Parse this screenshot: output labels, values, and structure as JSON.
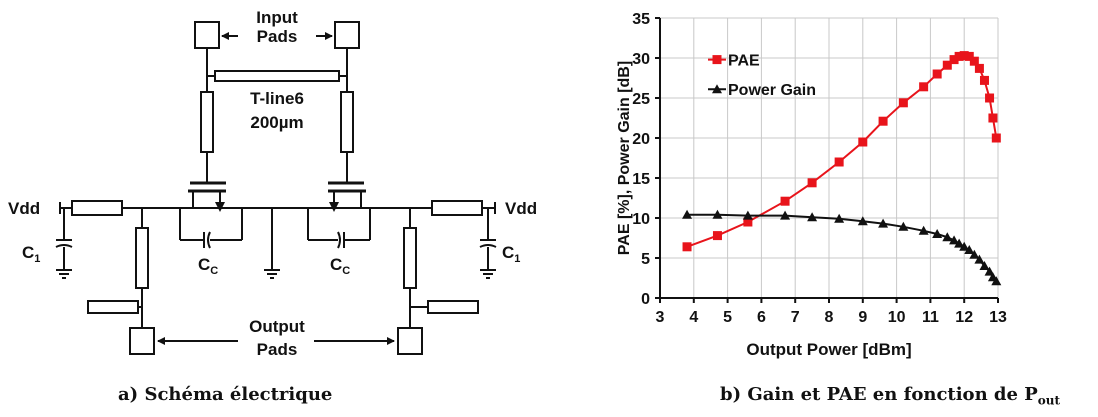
{
  "schematic": {
    "input_pads_line1": "Input",
    "input_pads_line2": "Pads",
    "tline_label1": "T-line6",
    "tline_label2": "200µm",
    "vdd_left": "Vdd",
    "vdd_right": "Vdd",
    "c1_left": "C",
    "c1_left_sub": "1",
    "c1_right": "C",
    "c1_right_sub": "1",
    "cc_left": "C",
    "cc_left_sub": "C",
    "cc_right": "C",
    "cc_right_sub": "C",
    "output_pads_line1": "Output",
    "output_pads_line2": "Pads"
  },
  "captions": {
    "left": "a) Schéma électrique",
    "right_main": "b) Gain et PAE en fonction de P",
    "right_sub": "out"
  },
  "chart_data": {
    "type": "line",
    "xlabel": "Output Power [dBm]",
    "ylabel": "PAE  [%],  Power  Gain  [dB]",
    "xlim": [
      3,
      13
    ],
    "ylim": [
      0,
      35
    ],
    "xticks": [
      3,
      4,
      5,
      6,
      7,
      8,
      9,
      10,
      11,
      12,
      13
    ],
    "yticks": [
      0,
      5,
      10,
      15,
      20,
      25,
      30,
      35
    ],
    "grid": true,
    "legend_position": "top-left",
    "series": [
      {
        "name": "PAE",
        "color": "#e8141b",
        "marker": "square",
        "x": [
          3.8,
          4.7,
          5.6,
          6.7,
          7.5,
          8.3,
          9.0,
          9.6,
          10.2,
          10.8,
          11.2,
          11.5,
          11.7,
          11.85,
          12.0,
          12.15,
          12.3,
          12.45,
          12.6,
          12.75,
          12.85,
          12.95
        ],
        "y": [
          6.4,
          7.8,
          9.5,
          12.1,
          14.4,
          17.0,
          19.5,
          22.1,
          24.4,
          26.4,
          28.0,
          29.1,
          29.8,
          30.2,
          30.3,
          30.2,
          29.6,
          28.7,
          27.2,
          25.0,
          22.5,
          20.0
        ]
      },
      {
        "name": "Power Gain",
        "color": "#111111",
        "marker": "triangle",
        "x": [
          3.8,
          4.7,
          5.6,
          6.7,
          7.5,
          8.3,
          9.0,
          9.6,
          10.2,
          10.8,
          11.2,
          11.5,
          11.7,
          11.85,
          12.0,
          12.15,
          12.3,
          12.45,
          12.6,
          12.75,
          12.85,
          12.95
        ],
        "y": [
          10.4,
          10.4,
          10.3,
          10.3,
          10.1,
          9.9,
          9.6,
          9.3,
          8.9,
          8.4,
          8.0,
          7.6,
          7.2,
          6.8,
          6.4,
          6.0,
          5.4,
          4.8,
          4.0,
          3.3,
          2.6,
          2.1
        ]
      }
    ]
  }
}
